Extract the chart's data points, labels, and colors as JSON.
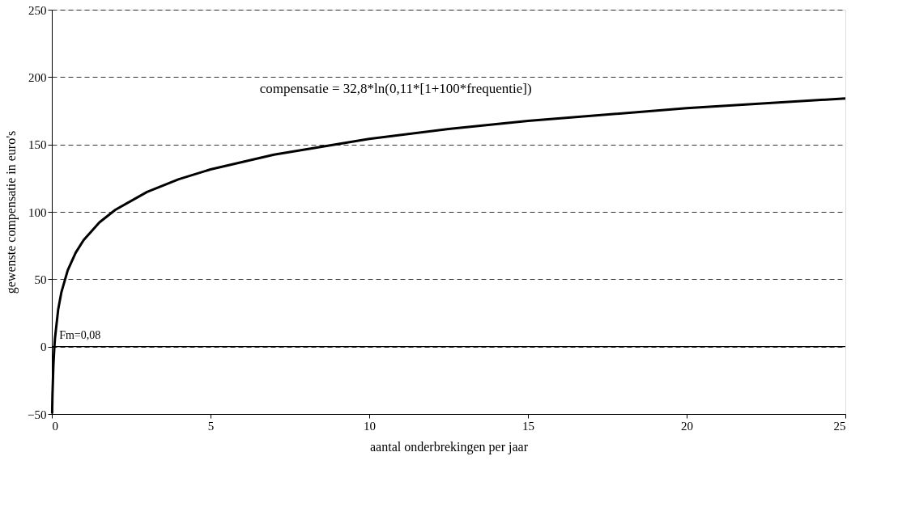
{
  "chart_data": {
    "type": "line",
    "xlabel": "aantal onderbrekingen per jaar",
    "ylabel": "gewenste compensatie in euro's",
    "x": [
      0.01,
      0.02,
      0.05,
      0.08,
      0.1,
      0.2,
      0.3,
      0.5,
      0.75,
      1,
      1.5,
      2,
      3,
      4,
      5,
      7,
      10,
      12.5,
      15,
      20,
      25
    ],
    "series": [
      {
        "color": "#000000",
        "values": [
          -49.7,
          -36.4,
          -13.6,
          -0.3,
          6.3,
          27.5,
          40.2,
          56.6,
          69.6,
          79.0,
          92.2,
          101.5,
          114.8,
          124.2,
          131.5,
          142.5,
          154.2,
          161.5,
          167.5,
          176.9,
          184.2
        ]
      }
    ],
    "xlim": [
      0,
      25
    ],
    "xticks": [
      0,
      5,
      10,
      15,
      20,
      25
    ],
    "ylim": [
      -50,
      250
    ],
    "yticks": [
      -50,
      0,
      50,
      100,
      150,
      200,
      250
    ],
    "grid": "y",
    "marker": "none",
    "line_style": "solid",
    "ref_lines": [
      {
        "axis": "y",
        "value": 0,
        "color": "#000000",
        "line_style": "solid"
      }
    ],
    "annotations": [
      "compensatie = 32,8*ln(0,11*[1+100*frequentie])",
      {
        "text": "Fm=0,08",
        "x": 0.08,
        "y": 0
      }
    ]
  }
}
